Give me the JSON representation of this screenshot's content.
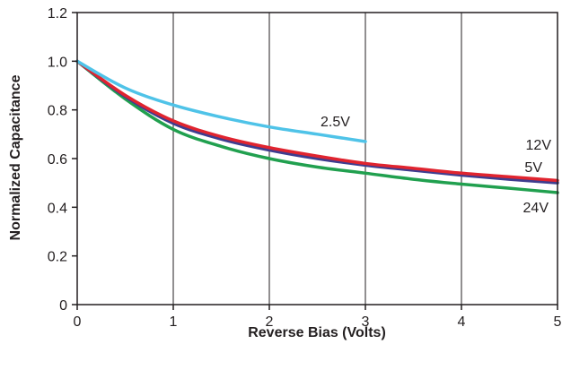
{
  "chart_data": {
    "type": "line",
    "title": "",
    "xlabel": "Reverse Bias (Volts)",
    "ylabel": "Normalized Capacitance",
    "xlim": [
      0,
      5
    ],
    "ylim": [
      0,
      1.2
    ],
    "x_ticks": [
      0,
      1,
      2,
      3,
      4,
      5
    ],
    "x_tick_labels": [
      "0",
      "1",
      "2",
      "3",
      "4",
      "5"
    ],
    "y_ticks": [
      0,
      0.2,
      0.4,
      0.6,
      0.8,
      1.0,
      1.2
    ],
    "y_tick_labels": [
      "0",
      "0.2",
      "0.4",
      "0.6",
      "0.8",
      "1.0",
      "1.2"
    ],
    "grid": {
      "vertical": true,
      "horizontal": false
    },
    "legend": "inline-labels",
    "series": [
      {
        "name": "2.5V",
        "color": "#4fc3e8",
        "x": [
          0,
          0.5,
          1,
          1.5,
          2,
          2.5,
          3
        ],
        "y": [
          1.0,
          0.89,
          0.82,
          0.77,
          0.73,
          0.7,
          0.67
        ]
      },
      {
        "name": "12V",
        "color": "#e0242f",
        "x": [
          0,
          0.5,
          1,
          1.5,
          2,
          2.5,
          3,
          3.5,
          4,
          4.5,
          5
        ],
        "y": [
          1.0,
          0.86,
          0.755,
          0.69,
          0.645,
          0.61,
          0.58,
          0.56,
          0.54,
          0.525,
          0.51
        ]
      },
      {
        "name": "5V",
        "color": "#3e3d8f",
        "x": [
          0,
          0.5,
          1,
          1.5,
          2,
          2.5,
          3,
          3.5,
          4,
          4.5,
          5
        ],
        "y": [
          1.0,
          0.855,
          0.745,
          0.68,
          0.635,
          0.6,
          0.573,
          0.552,
          0.532,
          0.515,
          0.5
        ]
      },
      {
        "name": "24V",
        "color": "#21a04f",
        "x": [
          0,
          0.5,
          1,
          1.5,
          2,
          2.5,
          3,
          3.5,
          4,
          4.5,
          5
        ],
        "y": [
          1.0,
          0.845,
          0.72,
          0.65,
          0.6,
          0.565,
          0.54,
          0.515,
          0.495,
          0.478,
          0.46
        ]
      }
    ]
  }
}
